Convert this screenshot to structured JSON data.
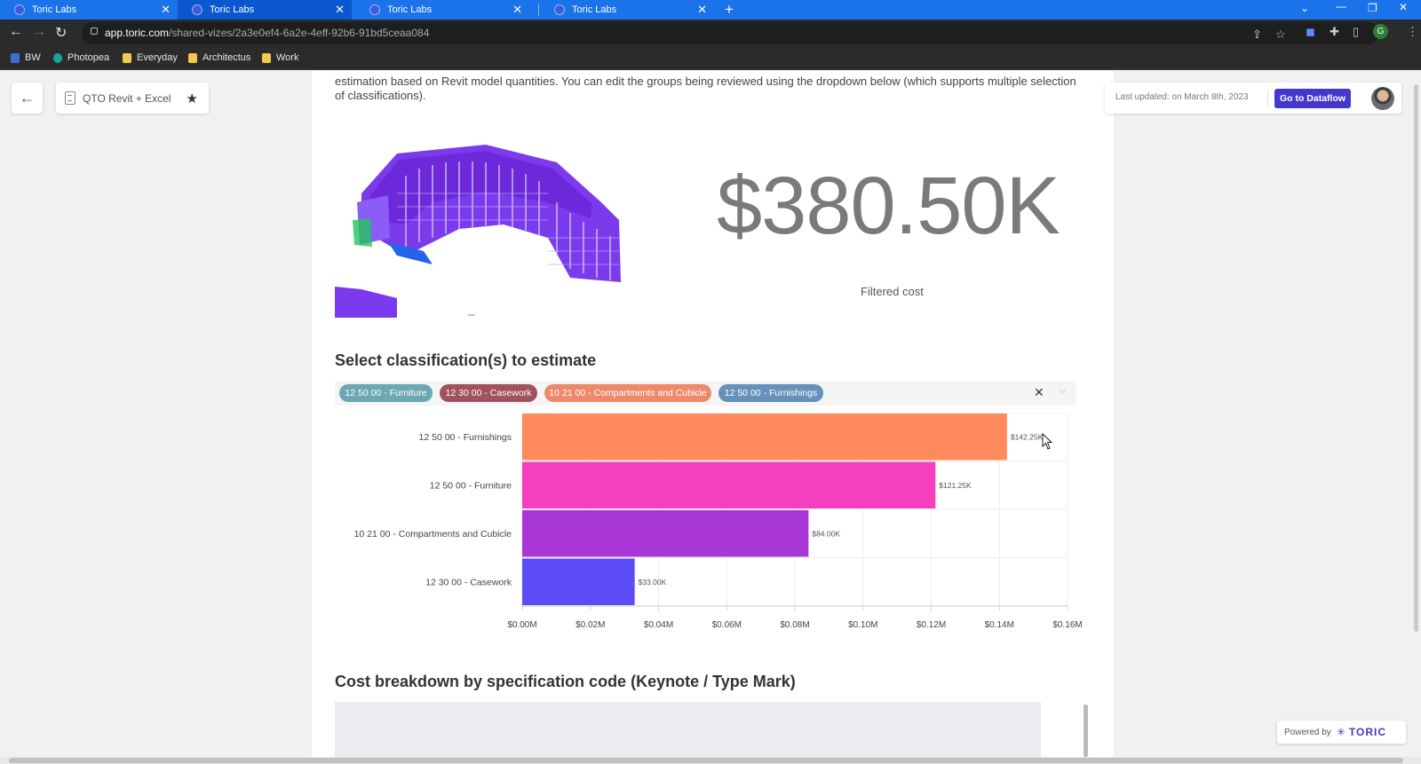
{
  "browser": {
    "tabs": [
      {
        "title": "Toric Labs"
      },
      {
        "title": "Toric Labs"
      },
      {
        "title": "Toric Labs"
      },
      {
        "title": "Toric Labs"
      }
    ],
    "url_host": "app.toric.com",
    "url_path": "/shared-vizes/2a3e0ef4-6a2e-4eff-92b6-91bd5ceaa084",
    "bookmarks": [
      "BW",
      "Photopea",
      "Everyday",
      "Architectus",
      "Work"
    ],
    "profile_initial": "G"
  },
  "header": {
    "title": "QTO Revit + Excel",
    "last_updated": "Last updated: on March 8th, 2023",
    "dataflow_button": "Go to Dataflow"
  },
  "intro_text": "estimation based on Revit model quantities. You can edit the groups being reviewed using the dropdown below (which supports multiple selection of classifications).",
  "summary": {
    "cost": "$380.50K",
    "cost_label": "Filtered cost"
  },
  "classification": {
    "heading": "Select classification(s) to estimate",
    "chips": [
      {
        "label": "12 50 00 - Furniture",
        "color": "#6ca8b3"
      },
      {
        "label": "12 30 00 - Casework",
        "color": "#a0525d"
      },
      {
        "label": "10 21 00 - Compartments and Cubicle",
        "color": "#ee8a6b"
      },
      {
        "label": "12 50 00 - Furnishings",
        "color": "#6691ba"
      }
    ]
  },
  "chart_data": {
    "type": "bar",
    "orientation": "horizontal",
    "categories": [
      "12 50 00 - Furnishings",
      "12 50 00 - Furniture",
      "10 21 00 - Compartments and Cubicle",
      "12 30 00 - Casework"
    ],
    "values": [
      142250,
      121250,
      84000,
      33000
    ],
    "data_labels": [
      "$142.25K",
      "$121.25K",
      "$84.00K",
      "$33.00K"
    ],
    "colors": [
      "#ff8a5b",
      "#f43fbe",
      "#a937d8",
      "#5b4cf5"
    ],
    "x_ticks": [
      "$0.00M",
      "$0.02M",
      "$0.04M",
      "$0.06M",
      "$0.08M",
      "$0.10M",
      "$0.12M",
      "$0.14M",
      "$0.16M"
    ],
    "xlim": [
      0,
      160000
    ],
    "grid": true
  },
  "breakdown": {
    "heading": "Cost breakdown by specification code (Keynote / Type Mark)"
  },
  "footer": {
    "powered_by": "Powered by",
    "brand": "TORIC"
  }
}
